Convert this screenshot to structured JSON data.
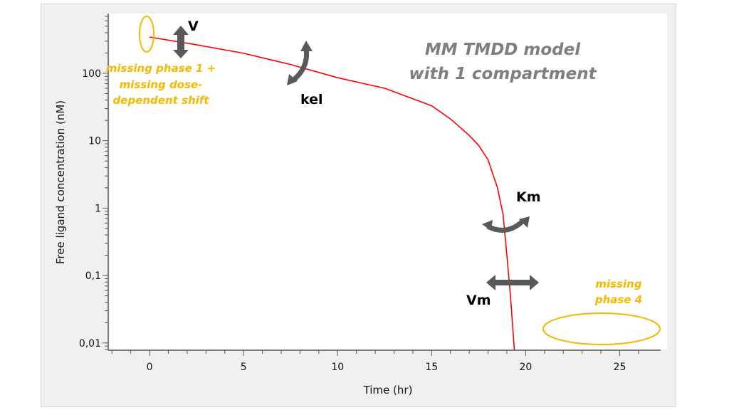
{
  "chart_data": {
    "type": "line",
    "title": "MM TMDD model\nwith 1 compartment",
    "title_lines": [
      "MM TMDD model",
      "with 1 compartment"
    ],
    "xlabel": "Time (hr)",
    "ylabel": "Free ligand concentration (nM)",
    "xlim": [
      -2.2,
      26.8
    ],
    "ylim": [
      0.0078,
      770
    ],
    "yscale": "log",
    "xticks": [
      0,
      5,
      10,
      15,
      20,
      25
    ],
    "xtick_labels": [
      "0",
      "5",
      "10",
      "15",
      "20",
      "25"
    ],
    "yticks": [
      0.01,
      0.1,
      1,
      10,
      100
    ],
    "ytick_labels": [
      "0,01",
      "0,1",
      "1",
      "10",
      "100"
    ],
    "grid": false,
    "series": [
      {
        "color": "#ff0000",
        "x": [
          0,
          2.5,
          5,
          7.5,
          10,
          12.5,
          15,
          16,
          17,
          17.5,
          18,
          18.5,
          18.8,
          19,
          19.2,
          19.4
        ],
        "y": [
          345,
          265,
          198,
          135,
          86,
          60,
          33,
          21,
          12,
          8.5,
          5.2,
          2.0,
          0.8,
          0.2,
          0.046,
          0.0078
        ]
      }
    ],
    "annotations": {
      "phase1": [
        "missing phase 1 +",
        "missing dose-",
        "dependent shift"
      ],
      "phase4": [
        "missing",
        "phase 4"
      ],
      "params": {
        "V": "V",
        "kel": "kel",
        "Km": "Km",
        "Vm": "Vm"
      },
      "highlight_color": "#f5b800",
      "arrow_color": "#595959"
    }
  }
}
